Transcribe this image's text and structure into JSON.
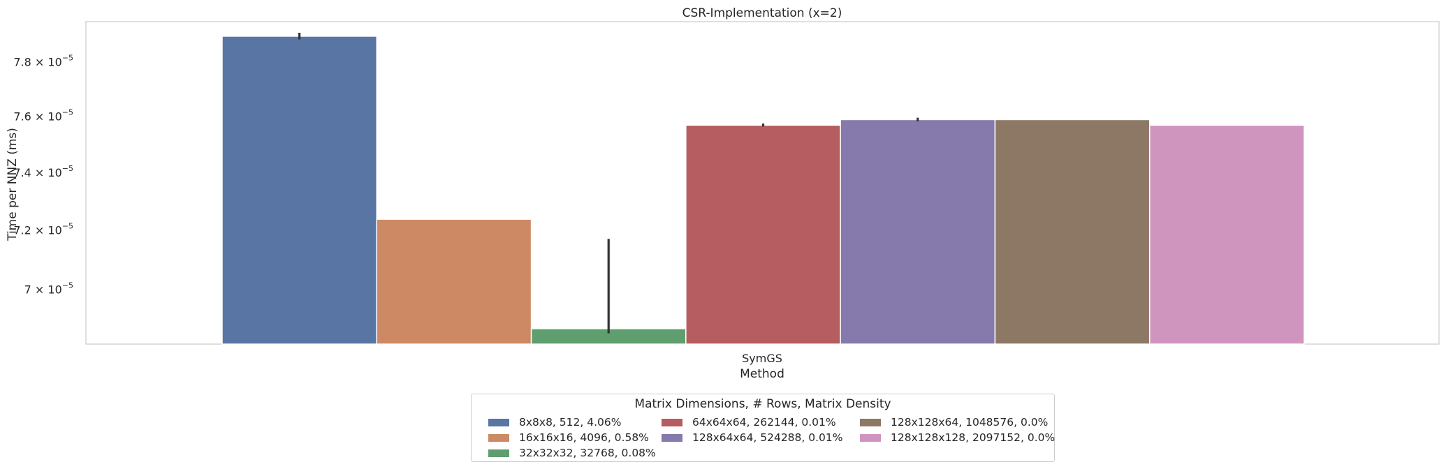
{
  "chart_data": {
    "type": "bar",
    "title": "CSR-Implementation (x=2)",
    "xlabel": "Method",
    "ylabel": "Time per NNZ (ms)",
    "yscale": "log",
    "ylim": [
      6.82e-05,
      7.95e-05
    ],
    "grid": false,
    "categories": [
      "SymGS"
    ],
    "yticks": [
      {
        "value": 7e-05,
        "mantissa": "7",
        "exp": "−5"
      },
      {
        "value": 7.2e-05,
        "mantissa": "7.2",
        "exp": "−5"
      },
      {
        "value": 7.4e-05,
        "mantissa": "7.4",
        "exp": "−5"
      },
      {
        "value": 7.6e-05,
        "mantissa": "7.6",
        "exp": "−5"
      },
      {
        "value": 7.8e-05,
        "mantissa": "7.8",
        "exp": "−5"
      }
    ],
    "legend_title": "Matrix Dimensions, # Rows, Matrix Density",
    "legend_placement": "bottom-center",
    "series": [
      {
        "name": "8x8x8, 512, 4.06%",
        "color": "#5975a4",
        "values": [
          7.895e-05
        ],
        "err": [
          [
            7.883e-05,
            7.908e-05
          ]
        ]
      },
      {
        "name": "16x16x16, 4096, 0.58%",
        "color": "#cc8963",
        "values": [
          7.237e-05
        ],
        "err": null
      },
      {
        "name": "32x32x32, 32768, 0.08%",
        "color": "#5f9e6e",
        "values": [
          6.87e-05
        ],
        "err": [
          [
            6.855e-05,
            7.17e-05
          ]
        ]
      },
      {
        "name": "64x64x64, 262144, 0.01%",
        "color": "#b55d60",
        "values": [
          7.568e-05
        ],
        "err": [
          [
            7.563e-05,
            7.574e-05
          ]
        ]
      },
      {
        "name": "128x64x64, 524288, 0.01%",
        "color": "#857aab",
        "values": [
          7.588e-05
        ],
        "err": [
          [
            7.582e-05,
            7.595e-05
          ]
        ]
      },
      {
        "name": "128x128x64, 1048576, 0.0%",
        "color": "#8d7866",
        "values": [
          7.588e-05
        ],
        "err": null
      },
      {
        "name": "128x128x128, 2097152, 0.0%",
        "color": "#d095bf",
        "values": [
          7.568e-05
        ],
        "err": null
      }
    ]
  }
}
